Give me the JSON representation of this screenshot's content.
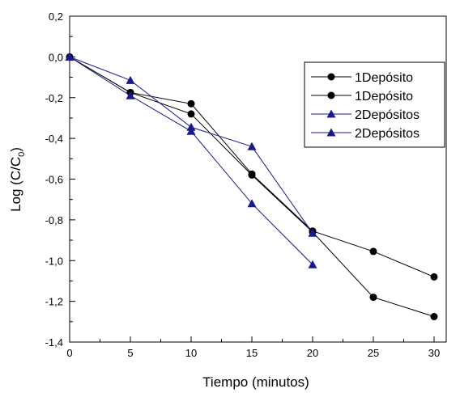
{
  "chart_data": {
    "type": "line",
    "xlabel": "Tiempo (minutos)",
    "ylabel_main": "Log (C/C",
    "ylabel_sub": "0",
    "ylabel_close": ")",
    "xlim": [
      0,
      31
    ],
    "ylim": [
      -1.4,
      0.2
    ],
    "x_ticks": [
      0,
      5,
      10,
      15,
      20,
      25,
      30
    ],
    "x_tick_labels": [
      "0",
      "5",
      "10",
      "15",
      "20",
      "25",
      "30"
    ],
    "y_ticks": [
      0.2,
      0.0,
      -0.2,
      -0.4,
      -0.6,
      -0.8,
      -1.0,
      -1.2,
      -1.4
    ],
    "y_tick_labels": [
      "0,2",
      "0,0",
      "-0,2",
      "-0,4",
      "-0,6",
      "-0,8",
      "-1,0",
      "-1,2",
      "-1,4"
    ],
    "grid": false,
    "legend_position": "top-right",
    "series": [
      {
        "name": "1Depósito",
        "marker": "circle",
        "color": "#000000",
        "x": [
          0,
          5,
          10,
          15,
          20,
          25,
          30
        ],
        "y": [
          0.0,
          -0.175,
          -0.23,
          -0.575,
          -0.855,
          -0.955,
          -1.08
        ]
      },
      {
        "name": "1Depósito",
        "marker": "circle",
        "color": "#000000",
        "x": [
          0,
          5,
          10,
          15,
          20,
          25,
          30
        ],
        "y": [
          0.0,
          -0.175,
          -0.28,
          -0.58,
          -0.86,
          -1.18,
          -1.275
        ]
      },
      {
        "name": "2Depósitos",
        "marker": "triangle",
        "color": "#1a1a8c",
        "x": [
          0,
          5,
          10,
          15,
          20
        ],
        "y": [
          0.0,
          -0.115,
          -0.345,
          -0.44,
          -0.865
        ]
      },
      {
        "name": "2Depósitos",
        "marker": "triangle",
        "color": "#1a1a8c",
        "x": [
          0,
          5,
          10,
          15,
          20
        ],
        "y": [
          0.0,
          -0.19,
          -0.365,
          -0.72,
          -1.02
        ]
      }
    ]
  }
}
